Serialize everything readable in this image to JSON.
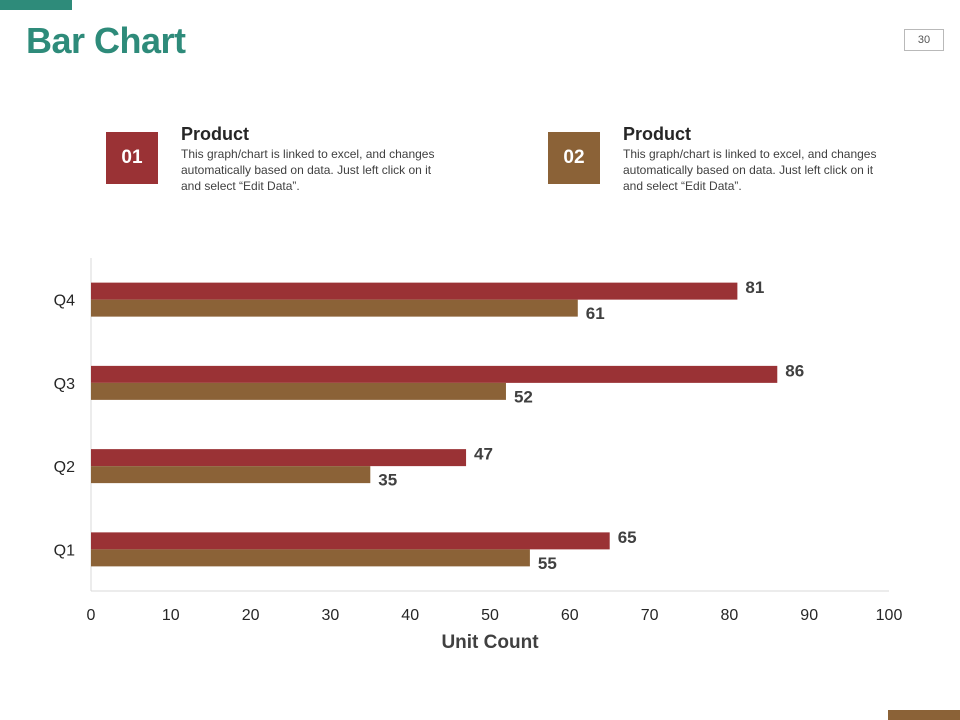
{
  "slide": {
    "title": "Bar Chart",
    "page_number": "30"
  },
  "legend": [
    {
      "number": "01",
      "heading": "Product",
      "description": "This graph/chart is linked to excel, and changes automatically based on data. Just left click on it and select “Edit Data”.",
      "color": "#9a3235"
    },
    {
      "number": "02",
      "heading": "Product",
      "description": "This graph/chart is linked to excel, and changes automatically based on data. Just left click on it and select “Edit Data”.",
      "color": "#8b6237"
    }
  ],
  "colors": {
    "accent_teal": "#2e8b7a",
    "accent_brown": "#8b6237",
    "bar_series_1": "#9a3235",
    "bar_series_2": "#8b6237",
    "axis_line": "#d9d9d9"
  },
  "chart_data": {
    "type": "bar",
    "orientation": "horizontal",
    "categories": [
      "Q1",
      "Q2",
      "Q3",
      "Q4"
    ],
    "series": [
      {
        "name": "Product 01",
        "values": [
          65,
          47,
          86,
          81
        ]
      },
      {
        "name": "Product 02",
        "values": [
          55,
          35,
          52,
          61
        ]
      }
    ],
    "xlabel": "Unit Count",
    "ylabel": "",
    "xlim": [
      0,
      100
    ],
    "xticks": [
      0,
      10,
      20,
      30,
      40,
      50,
      60,
      70,
      80,
      90,
      100
    ],
    "grid": false,
    "data_labels": true
  }
}
